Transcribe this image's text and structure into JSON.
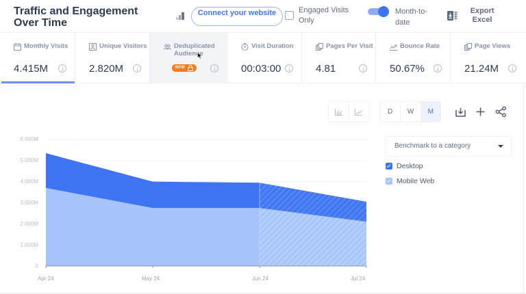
{
  "header": {
    "title": "Traffic and Engagement Over Time",
    "connect_button": "Connect your website",
    "engaged_visits_label": "Engaged Visits Only",
    "engaged_visits_checked": false,
    "month_to_date_label": "Month-to-date",
    "month_to_date_on": true,
    "export_label": "Export Excel"
  },
  "metrics": [
    {
      "label": "Monthly Visits",
      "value": "4.415M",
      "icon": "calendar-icon",
      "active": true
    },
    {
      "label": "Unique Visitors",
      "value": "2.820M",
      "icon": "person-icon"
    },
    {
      "label": "Deduplicated Audience",
      "value": "",
      "badge": "NEW",
      "icon": "users-icon",
      "locked": true
    },
    {
      "label": "Visit Duration",
      "value": "00:03:00",
      "icon": "clock-icon"
    },
    {
      "label": "Pages Per Visit",
      "value": "4.81",
      "icon": "pages-icon"
    },
    {
      "label": "Bounce Rate",
      "value": "50.67%",
      "icon": "bounce-icon"
    },
    {
      "label": "Page Views",
      "value": "21.24M",
      "icon": "pages-icon"
    }
  ],
  "toolbar": {
    "chart_types": [
      "bar-chart",
      "line-chart"
    ],
    "granularity": [
      "D",
      "W",
      "M"
    ],
    "granularity_selected": "M",
    "actions": [
      "download-icon",
      "plus-icon",
      "share-icon"
    ]
  },
  "benchmark": {
    "placeholder": "Benchmark to a category"
  },
  "legend": [
    {
      "label": "Desktop",
      "color": "#3e74f1",
      "checked": true
    },
    {
      "label": "Mobile Web",
      "color": "#a6c4fb",
      "checked": true
    }
  ],
  "colors": {
    "desktop": "#3e74f1",
    "mobile": "#a6c4fb",
    "accent": "#3e74f1",
    "badge": "#f77a1b"
  },
  "chart_data": {
    "type": "area",
    "stacked": true,
    "title": "Traffic and Engagement Over Time",
    "xlabel": "",
    "ylabel": "",
    "categories": [
      "Apr 24",
      "May 24",
      "Jun 24",
      "Jul 24"
    ],
    "series": [
      {
        "name": "Mobile Web",
        "values": [
          3.7,
          2.75,
          2.75,
          2.1
        ]
      },
      {
        "name": "Desktop",
        "values": [
          1.65,
          1.25,
          1.2,
          0.95
        ]
      }
    ],
    "totals": [
      5.35,
      4.0,
      3.95,
      3.05
    ],
    "yticks": [
      "0",
      "1.000M",
      "2.000M",
      "3.000M",
      "4.000M",
      "5.000M",
      "6.000M"
    ],
    "ylim": [
      0,
      6
    ],
    "unit": "M",
    "partial_period_start": "Jun 24",
    "grid": true,
    "legend_position": "right"
  }
}
